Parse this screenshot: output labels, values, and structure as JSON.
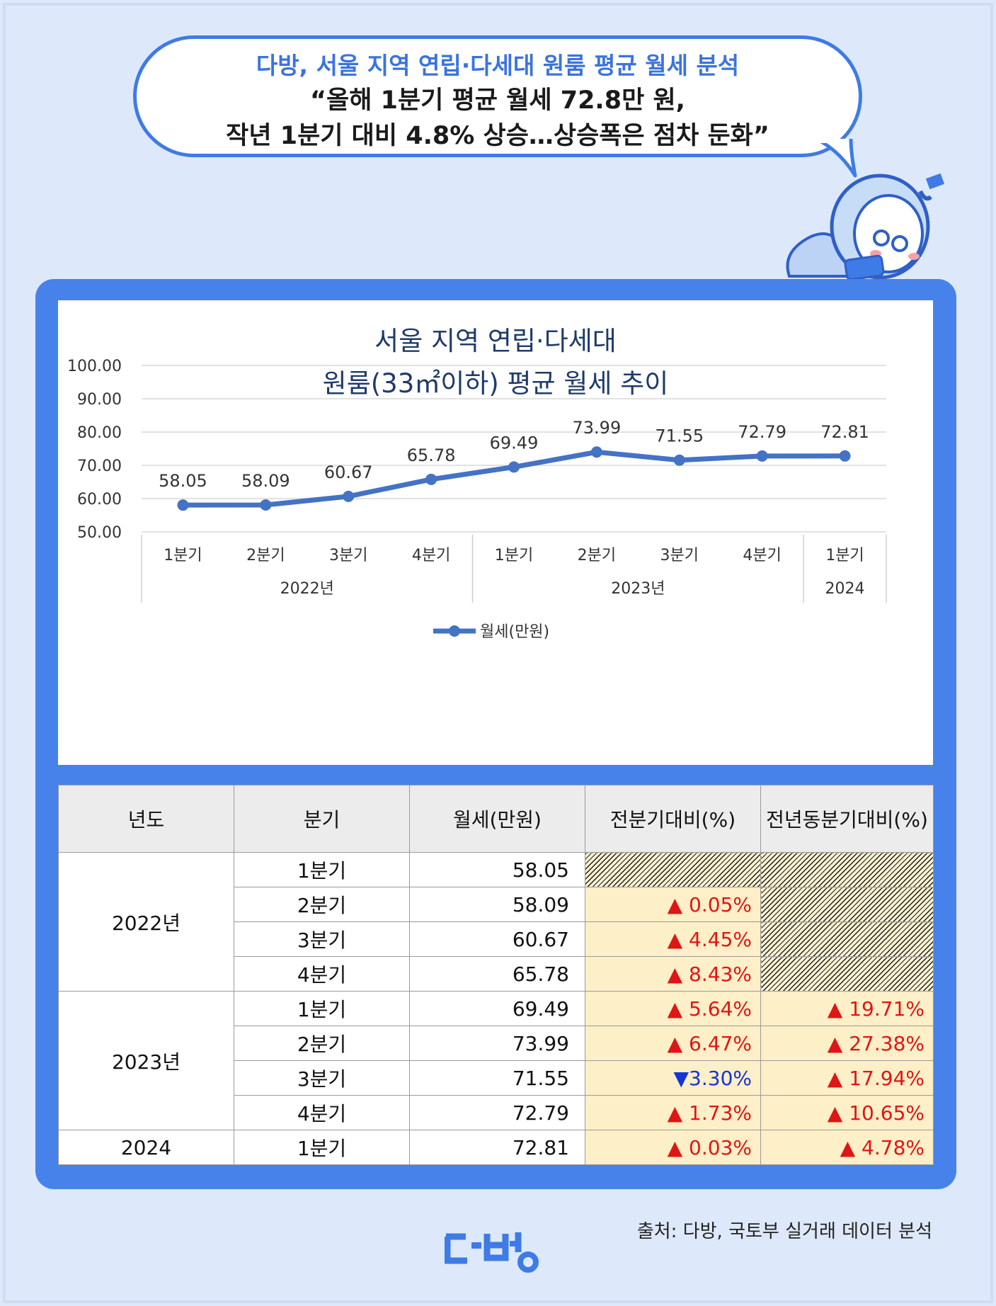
{
  "header": {
    "line1": "다방, 서울 지역 연립·다세대 원룸 평균 월세 분석",
    "line2": "“올해 1분기 평균 월세 72.8만 원,",
    "line3": "작년 1분기 대비 4.8% 상승…상승폭은 점차 둔화”"
  },
  "mascot_icon": "sleeping-mascot-icon",
  "chart_data": {
    "type": "line",
    "title": [
      "서울 지역 연립·다세대",
      "원룸(33㎡이하) 평균 월세 추이"
    ],
    "categories": [
      "1분기",
      "2분기",
      "3분기",
      "4분기",
      "1분기",
      "2분기",
      "3분기",
      "4분기",
      "1분기"
    ],
    "groups": [
      {
        "label": "2022년",
        "span": 4
      },
      {
        "label": "2023년",
        "span": 4
      },
      {
        "label": "2024",
        "span": 1
      }
    ],
    "series": [
      {
        "name": "월세(만원)",
        "values": [
          58.05,
          58.09,
          60.67,
          65.78,
          69.49,
          73.99,
          71.55,
          72.79,
          72.81
        ],
        "labels": [
          "58.05",
          "58.09",
          "60.67",
          "65.78",
          "69.49",
          "73.99",
          "71.55",
          "72.79",
          "72.81"
        ]
      }
    ],
    "ylim": [
      50,
      100
    ],
    "yticks": [
      "100.00",
      "90.00",
      "80.00",
      "70.00",
      "60.00",
      "50.00"
    ],
    "grid": true,
    "legend": "bottom",
    "line_color": "#4472c4"
  },
  "table": {
    "headers": [
      "년도",
      "분기",
      "월세(만원)",
      "전분기대비(%)",
      "전년동분기대비(%)"
    ],
    "groups": [
      {
        "year": "2022년",
        "rows": [
          {
            "quarter": "1분기",
            "rent": "58.05",
            "qoq": "",
            "yoy": ""
          },
          {
            "quarter": "2분기",
            "rent": "58.09",
            "qoq": "▲ 0.05%",
            "yoy": ""
          },
          {
            "quarter": "3분기",
            "rent": "60.67",
            "qoq": "▲ 4.45%",
            "yoy": ""
          },
          {
            "quarter": "4분기",
            "rent": "65.78",
            "qoq": "▲ 8.43%",
            "yoy": ""
          }
        ]
      },
      {
        "year": "2023년",
        "rows": [
          {
            "quarter": "1분기",
            "rent": "69.49",
            "qoq": "▲ 5.64%",
            "yoy": "▲ 19.71%"
          },
          {
            "quarter": "2분기",
            "rent": "73.99",
            "qoq": "▲ 6.47%",
            "yoy": "▲ 27.38%"
          },
          {
            "quarter": "3분기",
            "rent": "71.55",
            "qoq": "▼3.30%",
            "yoy": "▲ 17.94%"
          },
          {
            "quarter": "4분기",
            "rent": "72.79",
            "qoq": "▲ 1.73%",
            "yoy": "▲ 10.65%"
          }
        ]
      },
      {
        "year": "2024",
        "rows": [
          {
            "quarter": "1분기",
            "rent": "72.81",
            "qoq": "▲ 0.03%",
            "yoy": "▲ 4.78%"
          }
        ]
      }
    ],
    "colors": {
      "up": "#e01515",
      "down": "#1534d6",
      "pct_bg": "#fdefc8"
    }
  },
  "footer": {
    "logo_text": "다방",
    "source": "출처: 다방, 국토부 실거래 데이터 분석"
  }
}
